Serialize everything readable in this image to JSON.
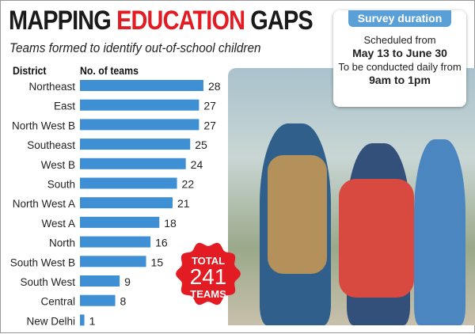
{
  "title": {
    "part1": "MAPPING ",
    "part2": "EDUCATION",
    "part3": " GAPS"
  },
  "subtitle": "Teams formed to identify out-of-school children",
  "survey": {
    "heading": "Survey duration",
    "line1": "Scheduled from",
    "line2": "May 13 to June 30",
    "line3": "To be conducted daily from",
    "line4": "9am to 1pm"
  },
  "badge": {
    "top": "TOTAL",
    "value": "241",
    "bottom": "TEAMS"
  },
  "colors": {
    "bar": "#3f8fd4",
    "accent": "#e31b23"
  },
  "chart_data": {
    "type": "bar",
    "orientation": "horizontal",
    "xlabel": "No. of teams",
    "ylabel": "District",
    "categories": [
      "Northeast",
      "East",
      "North West B",
      "Southeast",
      "West B",
      "South",
      "North West A",
      "West A",
      "North",
      "South West B",
      "South West",
      "Central",
      "New Delhi"
    ],
    "values": [
      28,
      27,
      27,
      25,
      24,
      22,
      21,
      18,
      16,
      15,
      9,
      8,
      1
    ]
  }
}
